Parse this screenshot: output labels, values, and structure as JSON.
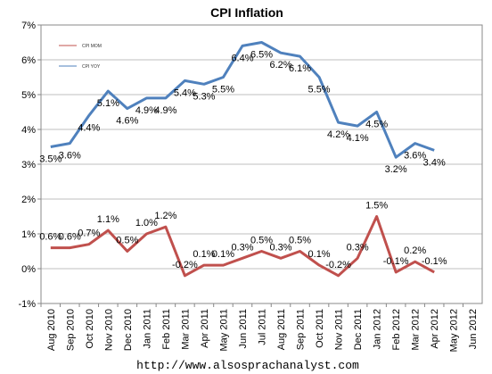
{
  "chart_data": {
    "type": "line",
    "title": "CPI Inflation",
    "categories": [
      "Aug 2010",
      "Sep 2010",
      "Oct 2010",
      "Nov 2010",
      "Dec 2010",
      "Jan 2011",
      "Feb 2011",
      "Mar 2011",
      "Apr 2011",
      "May 2011",
      "Jun 2011",
      "Jul 2011",
      "Aug 2011",
      "Sep 2011",
      "Oct 2011",
      "Nov 2011",
      "Dec 2011",
      "Jan 2012",
      "Feb 2012",
      "Mar 2012",
      "Apr 2012",
      "May 2012",
      "Jun 2012"
    ],
    "ylim": [
      -1,
      7
    ],
    "yticks": [
      "-1%",
      "0%",
      "1%",
      "2%",
      "3%",
      "4%",
      "5%",
      "6%",
      "7%"
    ],
    "grid": true,
    "legend_position": "top-left",
    "series": [
      {
        "name": "CPI MOM",
        "color": "#C0504D",
        "values": [
          0.6,
          0.6,
          0.7,
          1.1,
          0.5,
          1.0,
          1.2,
          -0.2,
          0.1,
          0.1,
          0.3,
          0.5,
          0.3,
          0.5,
          0.1,
          -0.2,
          0.3,
          1.5,
          -0.1,
          0.2,
          -0.1,
          null,
          null
        ],
        "labels": [
          "0.6%",
          "0.6%",
          "0.7%",
          "1.1%",
          "0.5%",
          "1.0%",
          "1.2%",
          "-0.2%",
          "0.1%",
          "0.1%",
          "0.3%",
          "0.5%",
          "0.3%",
          "0.5%",
          "0.1%",
          "-0.2%",
          "0.3%",
          "1.5%",
          "-0.1%",
          "0.2%",
          "-0.1%",
          "",
          ""
        ]
      },
      {
        "name": "CPI YOY",
        "color": "#4F81BD",
        "values": [
          3.5,
          3.6,
          4.4,
          5.1,
          4.6,
          4.9,
          4.9,
          5.4,
          5.3,
          5.5,
          6.4,
          6.5,
          6.2,
          6.1,
          5.5,
          4.2,
          4.1,
          4.5,
          3.2,
          3.6,
          3.4,
          null,
          null
        ],
        "labels": [
          "3.5%",
          "3.6%",
          "4.4%",
          "5.1%",
          "4.6%",
          "4.9%",
          "4.9%",
          "5.4%",
          "5.3%",
          "5.5%",
          "6.4%",
          "6.5%",
          "6.2%",
          "6.1%",
          "5.5%",
          "4.2%",
          "4.1%",
          "4.5%",
          "3.2%",
          "3.6%",
          "3.4%",
          "",
          ""
        ]
      }
    ],
    "footer": "http://www.alsosprachanalyst.com"
  }
}
